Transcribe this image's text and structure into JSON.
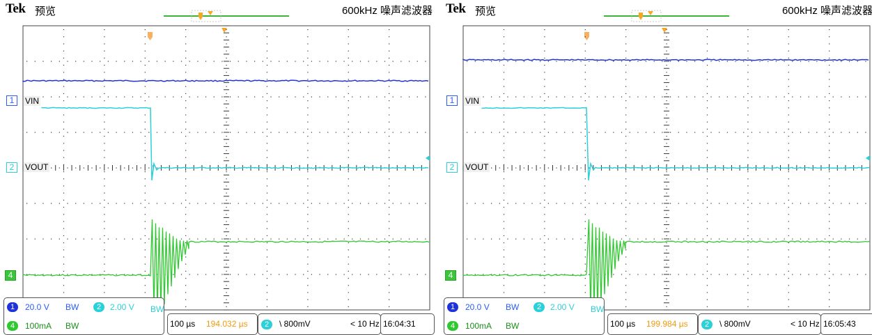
{
  "colors": {
    "ch1": "#2033d8",
    "ch2": "#2bd0d8",
    "ch4": "#30c830",
    "trigger": "#f5a623",
    "grid": "#444444",
    "record_bar": "#3ab53a"
  },
  "screens": [
    {
      "brand": "Tek",
      "mode": "预览",
      "filter": "600kHz  噪声滤波器",
      "channels": {
        "ch1_num": "1",
        "ch1_name": "VIN",
        "ch2_num": "2",
        "ch2_name": "VOUT",
        "ch4_num": "4"
      },
      "vert": {
        "ch1_scale": "20.0 V",
        "ch1_bw": "BW",
        "ch2_scale": "2.00 V",
        "ch2_bw": "BW",
        "ch4_scale": "100mA",
        "ch4_bw": "BW"
      },
      "horiz": {
        "timebase": "100 µs",
        "delay": "194.032 µs"
      },
      "trigger": {
        "source": "2",
        "level": "\\ 800mV",
        "freq": "< 10 Hz"
      },
      "time": "16:04:31"
    },
    {
      "brand": "Tek",
      "mode": "预览",
      "filter": "600kHz  噪声滤波器",
      "channels": {
        "ch1_num": "1",
        "ch1_name": "VIN",
        "ch2_num": "2",
        "ch2_name": "VOUT",
        "ch4_num": "4"
      },
      "vert": {
        "ch1_scale": "20.0 V",
        "ch1_bw": "BW",
        "ch2_scale": "2.00 V",
        "ch2_bw": "BW",
        "ch4_scale": "100mA",
        "ch4_bw": "BW"
      },
      "horiz": {
        "timebase": "100 µs",
        "delay": "199.984 µs"
      },
      "trigger": {
        "source": "2",
        "level": "\\ 800mV",
        "freq": "< 10 Hz"
      },
      "time": "16:05:43"
    }
  ]
}
